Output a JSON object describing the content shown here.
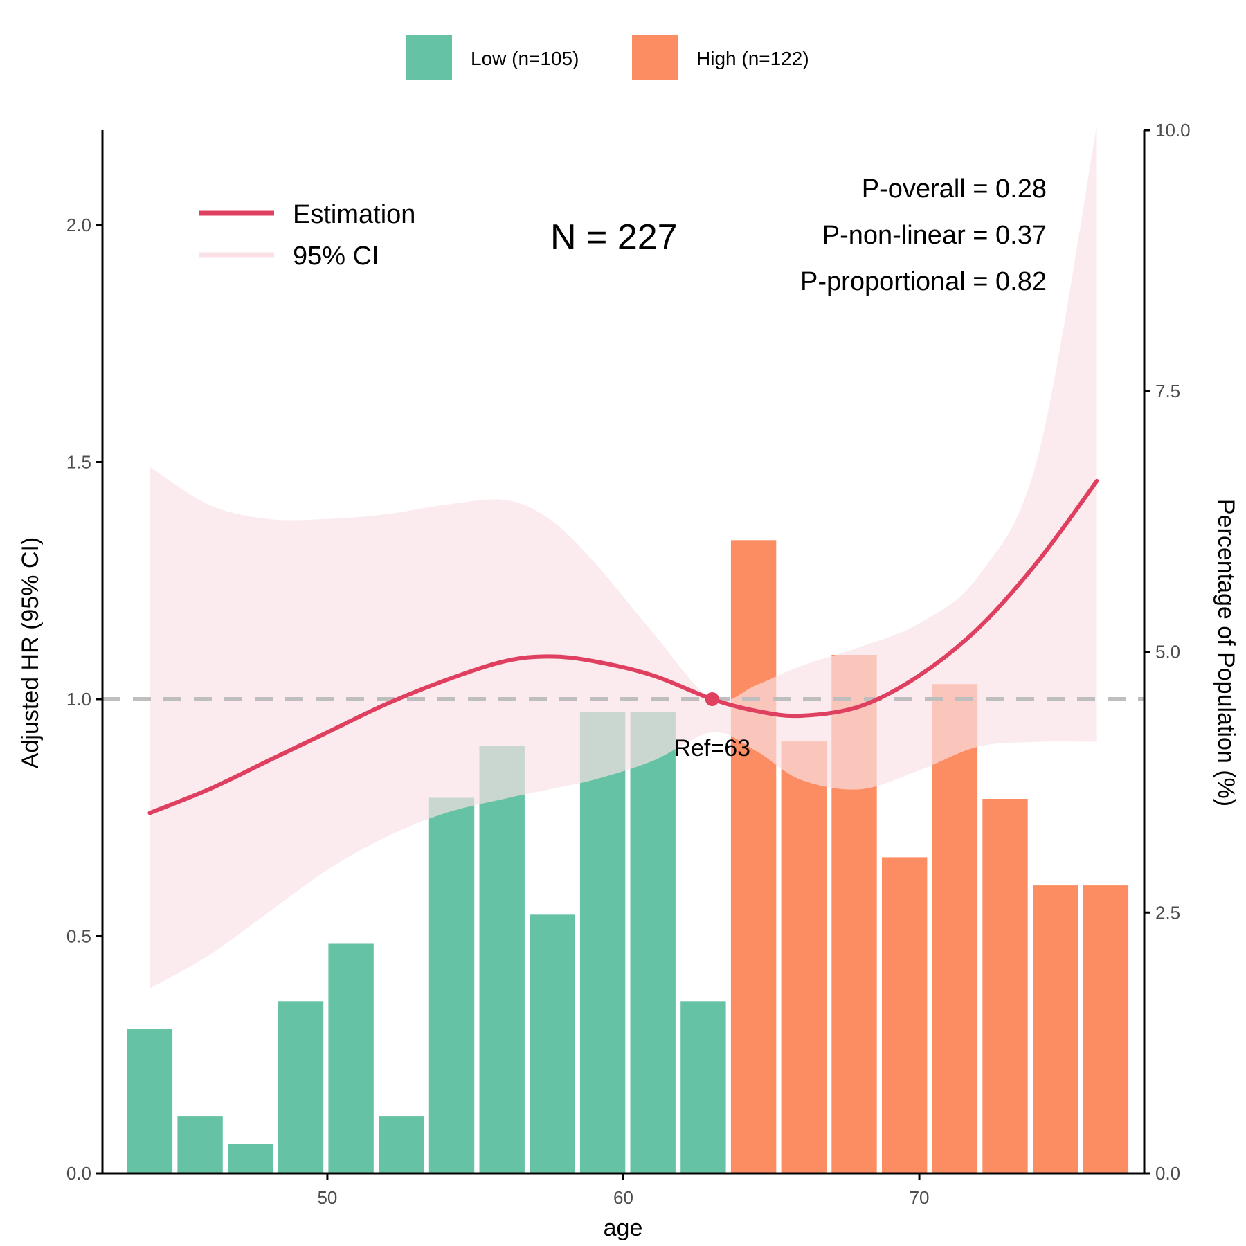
{
  "chart_data": {
    "type": "line",
    "xlabel": "age",
    "ylabel": "Adjusted HR (95% CI)",
    "y2label": "Percentage of Population (%)",
    "xlim": [
      42.4,
      77.6
    ],
    "ylim": [
      0,
      2.2
    ],
    "y2lim": [
      0,
      10
    ],
    "x_ticks": [
      50,
      60,
      70
    ],
    "y_ticks": [
      0.0,
      0.5,
      1.0,
      1.5,
      2.0
    ],
    "y_tick_labels": [
      "0.0",
      "0.5",
      "1.0",
      "1.5",
      "2.0"
    ],
    "y2_ticks": [
      0,
      2.5,
      5,
      7.5,
      10
    ],
    "y2_tick_labels": [
      "0.0",
      "2.5",
      "5.0",
      "7.5",
      "10.0"
    ],
    "reference_line": 1.0,
    "reference_point": {
      "x": 63,
      "y": 1.0,
      "label": "Ref=63"
    },
    "n_text": "N = 227",
    "stats": [
      "P-overall = 0.28",
      "P-non-linear = 0.37",
      "P-proportional = 0.82"
    ],
    "legend": {
      "groups": [
        {
          "label": "Low (n=105)",
          "color": "#66C2A5"
        },
        {
          "label": "High (n=122)",
          "color": "#FC8D62"
        }
      ],
      "lines": [
        {
          "label": "Estimation",
          "color": "#E04060"
        },
        {
          "label": "95% CI",
          "color": "#F9E1E6"
        }
      ]
    },
    "histogram": {
      "x": [
        44,
        45.7,
        47.4,
        49.1,
        50.8,
        52.5,
        54.2,
        55.9,
        57.6,
        59.3,
        61,
        62.7,
        64.4,
        66.1,
        67.8,
        69.5,
        71.2,
        72.9,
        74.6,
        76.3
      ],
      "values": [
        1.38,
        0.55,
        0.28,
        1.65,
        2.2,
        0.55,
        3.6,
        4.1,
        2.48,
        4.42,
        4.42,
        1.65,
        6.07,
        4.14,
        4.97,
        3.03,
        4.69,
        3.59,
        2.76,
        2.76
      ],
      "groups": [
        "Low",
        "Low",
        "Low",
        "Low",
        "Low",
        "Low",
        "Low",
        "Low",
        "Low",
        "Low",
        "Low",
        "Low",
        "High",
        "High",
        "High",
        "High",
        "High",
        "High",
        "High",
        "High"
      ]
    },
    "series": [
      {
        "name": "Estimation",
        "x": [
          44,
          46,
          48,
          50,
          52,
          54,
          56,
          57.5,
          59,
          61,
          63,
          64.5,
          66,
          68,
          70,
          72,
          74,
          76
        ],
        "y": [
          0.76,
          0.81,
          0.87,
          0.93,
          0.99,
          1.04,
          1.08,
          1.09,
          1.08,
          1.05,
          1.0,
          0.975,
          0.965,
          0.985,
          1.05,
          1.15,
          1.29,
          1.46
        ]
      },
      {
        "name": "95% CI",
        "x": [
          44,
          46,
          48,
          50,
          52,
          54,
          56,
          57.5,
          59,
          61,
          63,
          64.5,
          66,
          68,
          70,
          72,
          74,
          76
        ],
        "lower": [
          0.39,
          0.46,
          0.55,
          0.64,
          0.71,
          0.76,
          0.79,
          0.81,
          0.83,
          0.87,
          0.93,
          0.89,
          0.83,
          0.81,
          0.85,
          0.9,
          0.91,
          0.91
        ],
        "upper": [
          1.49,
          1.41,
          1.38,
          1.38,
          1.39,
          1.41,
          1.42,
          1.38,
          1.29,
          1.14,
          1.0,
          1.03,
          1.07,
          1.11,
          1.16,
          1.26,
          1.51,
          2.21
        ]
      }
    ]
  }
}
